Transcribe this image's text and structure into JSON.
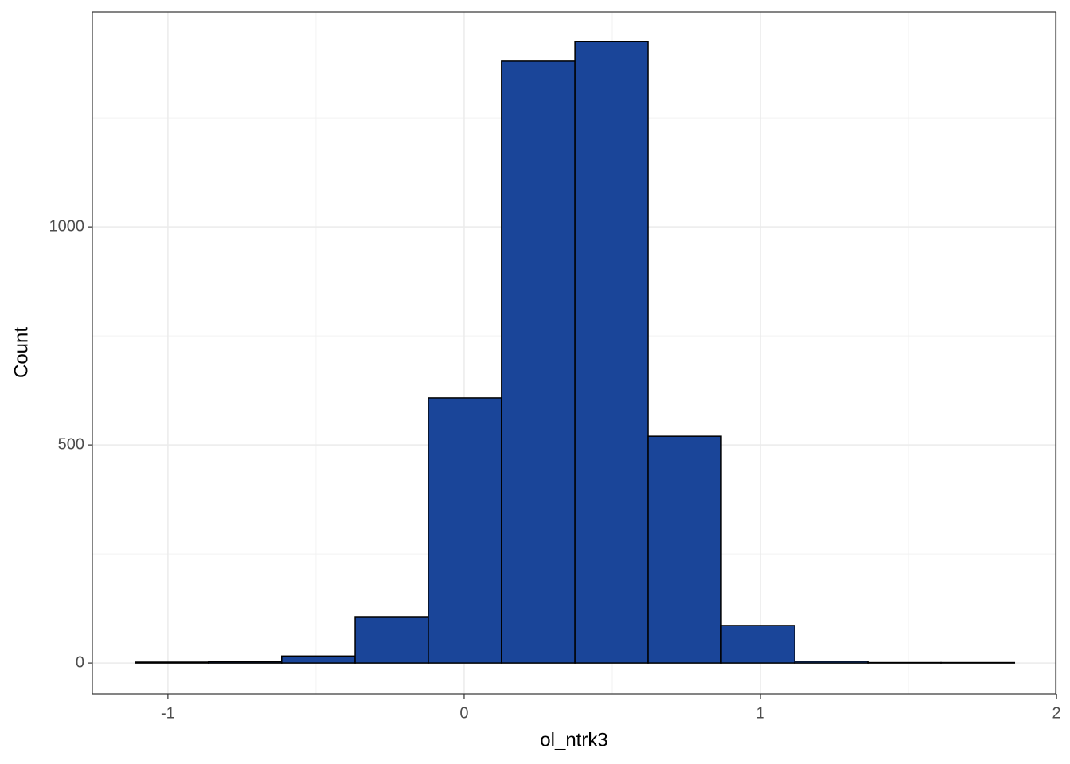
{
  "chart_data": {
    "type": "histogram",
    "xlabel": "ol_ntrk3",
    "ylabel": "Count",
    "bins": [
      -1.11,
      -0.863,
      -0.616,
      -0.368,
      -0.121,
      0.126,
      0.374,
      0.621,
      0.868,
      1.116,
      1.363,
      1.61,
      1.858
    ],
    "values": [
      2,
      3,
      16,
      106,
      608,
      1380,
      1425,
      520,
      86,
      4,
      1,
      1
    ],
    "color": "#1a4599",
    "edgecolor": "#000000",
    "xlim": [
      -1.255,
      1.997
    ],
    "ylim": [
      -71,
      1493
    ],
    "xticks": [
      -1,
      0,
      1,
      2
    ],
    "yticks": [
      0,
      500,
      1000
    ],
    "minor_xticks": [
      -0.5,
      0.5,
      1.5
    ],
    "minor_yticks": [
      250,
      750,
      1250
    ],
    "grid": true
  }
}
